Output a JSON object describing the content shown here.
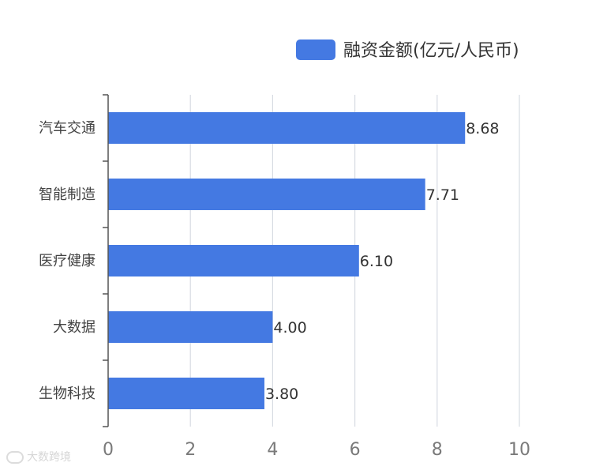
{
  "chart_data": {
    "type": "bar",
    "orientation": "horizontal",
    "categories": [
      "汽车交通",
      "智能制造",
      "医疗健康",
      "大数据",
      "生物科技"
    ],
    "series": [
      {
        "name": "融资金额(亿元/人民币)",
        "values": [
          8.68,
          7.71,
          6.1,
          4.0,
          3.8
        ],
        "value_labels": [
          "8.68",
          "7.71",
          "6.10",
          "4.00",
          "3.80"
        ]
      }
    ],
    "xlim": [
      0,
      10
    ],
    "xticks": [
      "0",
      "2",
      "4",
      "6",
      "8",
      "10"
    ],
    "grid": "vertical",
    "legend": "top-right"
  },
  "colors": {
    "bar": "#4479e2",
    "grid": "#d7dbe2",
    "axis": "#555555"
  },
  "watermark": {
    "text": "大数跨境"
  }
}
